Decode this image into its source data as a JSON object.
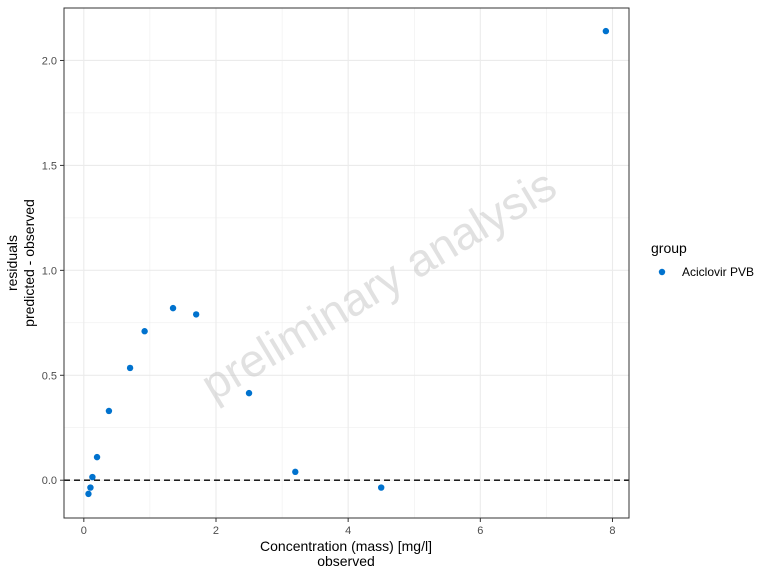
{
  "chart_data": {
    "type": "scatter",
    "xlabel_line1": "Concentration (mass) [mg/l]",
    "xlabel_line2": "observed",
    "ylabel_line1": "residuals",
    "ylabel_line2": "predicted - observed",
    "xlim": [
      -0.3,
      8.25
    ],
    "ylim": [
      -0.18,
      2.25
    ],
    "x_ticks": [
      0,
      2,
      4,
      6,
      8
    ],
    "x_tick_labels": [
      "0",
      "2",
      "4",
      "6",
      "8"
    ],
    "y_ticks": [
      0.0,
      0.5,
      1.0,
      1.5,
      2.0
    ],
    "y_tick_labels": [
      "0.0",
      "0.5",
      "1.0",
      "1.5",
      "2.0"
    ],
    "grid": true,
    "reference_line": {
      "y": 0,
      "style": "dashed"
    },
    "legend": {
      "title": "group",
      "placement": "right",
      "entries": [
        "Aciclovir PVB"
      ]
    },
    "watermark": "preliminary analysis",
    "colors": {
      "point": "#0072CE",
      "grid": "#ebebeb",
      "panel_border": "#333333",
      "reference_line": "#000000"
    },
    "series": [
      {
        "name": "Aciclovir PVB",
        "points": [
          {
            "x": 0.07,
            "y": -0.065
          },
          {
            "x": 0.1,
            "y": -0.035
          },
          {
            "x": 0.13,
            "y": 0.015
          },
          {
            "x": 0.2,
            "y": 0.11
          },
          {
            "x": 0.38,
            "y": 0.33
          },
          {
            "x": 0.7,
            "y": 0.535
          },
          {
            "x": 0.92,
            "y": 0.71
          },
          {
            "x": 1.35,
            "y": 0.82
          },
          {
            "x": 1.7,
            "y": 0.79
          },
          {
            "x": 2.5,
            "y": 0.415
          },
          {
            "x": 3.2,
            "y": 0.04
          },
          {
            "x": 4.5,
            "y": -0.035
          },
          {
            "x": 7.9,
            "y": 2.14
          }
        ]
      }
    ]
  }
}
